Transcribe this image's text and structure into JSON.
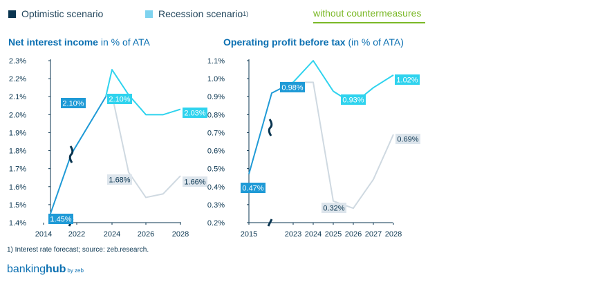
{
  "legend": {
    "optimistic": "Optimistic scenario",
    "recession": "Recession scenario",
    "recession_note": "1)",
    "without": "without countermeasures"
  },
  "colors": {
    "optimistic": "#1f9ad6",
    "recession": "#2fd3ee",
    "without": "#cfd9e1",
    "countermeasures": "#7ab826",
    "legend_optimistic": "#0a3550",
    "legend_recession": "#7fd3ef"
  },
  "chart_data": [
    {
      "type": "line",
      "title": "Net interest income",
      "title_suffix": " in % of ATA",
      "x_ticks": [
        "2014",
        "2022",
        "2024",
        "2026",
        "2028"
      ],
      "y_ticks": [
        "2.3%",
        "2.2%",
        "2.1%",
        "2.0%",
        "1.9%",
        "1.8%",
        "1.7%",
        "1.6%",
        "1.5%",
        "1.4%"
      ],
      "ylim": [
        1.4,
        2.3
      ],
      "axis_break": true,
      "series": [
        {
          "name": "Optimistic scenario",
          "x": [
            2014,
            2021.7,
            2023.5
          ],
          "y": [
            1.45,
            1.78,
            2.1
          ]
        },
        {
          "name": "Recession scenario",
          "x": [
            2023.5,
            2024,
            2025,
            2026,
            2027,
            2028
          ],
          "y": [
            2.1,
            2.25,
            2.11,
            2.0,
            2.0,
            2.03
          ]
        },
        {
          "name": "without countermeasures",
          "x": [
            2023.5,
            2024,
            2025,
            2026,
            2027,
            2028
          ],
          "y": [
            2.1,
            2.11,
            1.68,
            1.54,
            1.56,
            1.66
          ]
        }
      ],
      "data_labels": [
        {
          "text": "1.45%",
          "style": "optimistic"
        },
        {
          "text": "2.10%",
          "style": "optimistic"
        },
        {
          "text": "2.10%",
          "style": "recession"
        },
        {
          "text": "2.03%",
          "style": "recession"
        },
        {
          "text": "1.68%",
          "style": "without"
        },
        {
          "text": "1.66%",
          "style": "without"
        }
      ]
    },
    {
      "type": "line",
      "title": "Operating profit before tax",
      "title_suffix": " (in % of ATA)",
      "x_ticks": [
        "2015",
        "2023",
        "2024",
        "2025",
        "2026",
        "2027",
        "2028"
      ],
      "y_ticks": [
        "1.1%",
        "1.0%",
        "0.9%",
        "0.8%",
        "0.7%",
        "0.6%",
        "0.5%",
        "0.4%",
        "0.3%",
        "0.2%"
      ],
      "ylim": [
        0.2,
        1.1
      ],
      "axis_break": true,
      "series": [
        {
          "name": "Optimistic scenario",
          "x": [
            2015,
            2022.7,
            2023
          ],
          "y": [
            0.47,
            0.92,
            0.98
          ]
        },
        {
          "name": "Recession scenario",
          "x": [
            2023,
            2024,
            2025,
            2026,
            2027,
            2028
          ],
          "y": [
            0.98,
            1.1,
            0.93,
            0.86,
            0.95,
            1.02
          ]
        },
        {
          "name": "without countermeasures",
          "x": [
            2023,
            2024,
            2025,
            2026,
            2027,
            2028
          ],
          "y": [
            0.98,
            0.98,
            0.32,
            0.28,
            0.44,
            0.69
          ]
        }
      ],
      "data_labels": [
        {
          "text": "0.47%",
          "style": "optimistic"
        },
        {
          "text": "0.98%",
          "style": "optimistic"
        },
        {
          "text": "0.93%",
          "style": "recession"
        },
        {
          "text": "1.02%",
          "style": "recession"
        },
        {
          "text": "0.32%",
          "style": "without"
        },
        {
          "text": "0.69%",
          "style": "without"
        }
      ]
    }
  ],
  "footnote": "1) Interest rate forecast; source: zeb.research.",
  "brand": {
    "name_light": "banking",
    "name_bold": "hub",
    "sub": "by zeb"
  }
}
